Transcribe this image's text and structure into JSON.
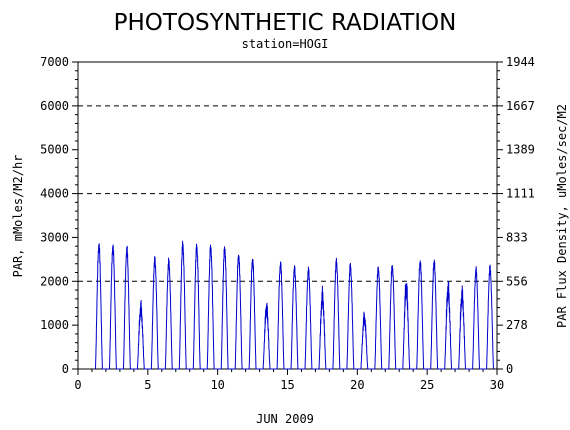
{
  "chart_data": {
    "type": "line",
    "title": "PHOTOSYNTHETIC RADIATION",
    "subtitle": "station=HOGI",
    "xlabel": "JUN 2009",
    "ylabel_left": "PAR, mMoles/M2/hr",
    "ylabel_right": "PAR Flux Density, uMoles/sec/M2",
    "xlim": [
      0,
      30
    ],
    "ylim": [
      0,
      7000
    ],
    "x_ticks": [
      "0",
      "5",
      "10",
      "15",
      "20",
      "25",
      "30"
    ],
    "y_ticks_left": [
      "0",
      "1000",
      "2000",
      "3000",
      "4000",
      "5000",
      "6000",
      "7000"
    ],
    "y_ticks_right": [
      "0",
      "278",
      "556",
      "833",
      "1111",
      "1389",
      "1667",
      "1944"
    ],
    "dashed_gridlines_y": [
      2000,
      4000,
      6000
    ],
    "series_color": "#0000cc",
    "daily_peak_values": {
      "day": [
        1,
        2,
        3,
        4,
        5,
        6,
        7,
        8,
        9,
        10,
        11,
        12,
        13,
        14,
        15,
        16,
        17,
        18,
        19,
        20,
        21,
        22,
        23,
        24,
        25,
        26,
        27,
        28,
        29
      ],
      "peak": [
        2950,
        2900,
        2850,
        1600,
        2600,
        2550,
        2950,
        2900,
        2900,
        2880,
        2700,
        2600,
        1600,
        2500,
        2400,
        2350,
        1900,
        2550,
        2450,
        1350,
        2400,
        2450,
        2150,
        2550,
        2550,
        2100,
        1950,
        2350,
        2400
      ]
    }
  }
}
